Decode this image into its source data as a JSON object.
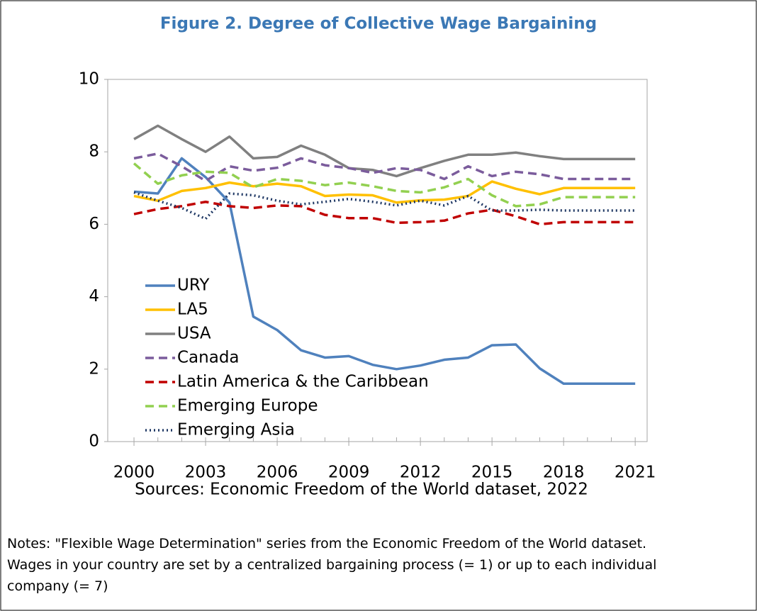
{
  "chart_data": {
    "type": "line",
    "title": "Figure 2. Degree of Collective Wage Bargaining",
    "source": "Sources: Economic Freedom of the World dataset, 2022",
    "notes": [
      "Notes:  \"Flexible Wage Determination\" series from the Economic Freedom of the World dataset.",
      "Wages in your country are set by a centralized bargaining process (= 1) or up to each individual",
      "company (= 7)"
    ],
    "x": [
      2000,
      2001,
      2002,
      2003,
      2004,
      2005,
      2006,
      2007,
      2008,
      2009,
      2010,
      2011,
      2012,
      2013,
      2014,
      2015,
      2016,
      2017,
      2018,
      2019,
      2020,
      2021
    ],
    "xlim": [
      1998.9,
      2021.5
    ],
    "xticks": [
      2000,
      2003,
      2006,
      2009,
      2012,
      2015,
      2018,
      2021
    ],
    "ylim": [
      0,
      10
    ],
    "yticks": [
      0,
      2,
      4,
      6,
      8,
      10
    ],
    "grid": false,
    "legend": "lower left",
    "series": [
      {
        "name": "URY",
        "color": "#4f81bd",
        "dash": "solid",
        "values": [
          6.9,
          6.85,
          7.82,
          7.3,
          6.6,
          3.45,
          3.08,
          2.52,
          2.32,
          2.36,
          2.12,
          2.0,
          2.1,
          2.26,
          2.32,
          2.66,
          2.68,
          2.02,
          1.6,
          1.6,
          1.6,
          1.6
        ]
      },
      {
        "name": "LA5",
        "color": "#ffc000",
        "dash": "solid",
        "values": [
          6.78,
          6.65,
          6.92,
          7.0,
          7.15,
          7.05,
          7.12,
          7.05,
          6.78,
          6.82,
          6.8,
          6.6,
          6.66,
          6.68,
          6.78,
          7.18,
          6.98,
          6.83,
          7.0,
          7.0,
          7.0,
          7.0
        ]
      },
      {
        "name": "USA",
        "color": "#808080",
        "dash": "solid",
        "values": [
          8.35,
          8.72,
          8.35,
          8.0,
          8.42,
          7.82,
          7.86,
          8.17,
          7.92,
          7.55,
          7.5,
          7.33,
          7.55,
          7.75,
          7.92,
          7.92,
          7.98,
          7.88,
          7.8,
          7.8,
          7.8,
          7.8
        ]
      },
      {
        "name": "Canada",
        "color": "#7b5c9c",
        "dash": "dashed",
        "values": [
          7.82,
          7.95,
          7.6,
          7.2,
          7.6,
          7.48,
          7.56,
          7.82,
          7.63,
          7.55,
          7.42,
          7.55,
          7.5,
          7.25,
          7.6,
          7.33,
          7.45,
          7.38,
          7.25,
          7.25,
          7.25,
          7.25
        ]
      },
      {
        "name": "Latin America & the Caribbean",
        "color": "#c00000",
        "dash": "dashed",
        "values": [
          6.28,
          6.42,
          6.5,
          6.62,
          6.5,
          6.45,
          6.52,
          6.5,
          6.26,
          6.17,
          6.17,
          6.04,
          6.06,
          6.1,
          6.3,
          6.4,
          6.22,
          6.0,
          6.06,
          6.06,
          6.06,
          6.06
        ]
      },
      {
        "name": "Emerging Europe",
        "color": "#92d050",
        "dash": "dashed",
        "values": [
          7.68,
          7.12,
          7.35,
          7.45,
          7.42,
          7.02,
          7.25,
          7.2,
          7.08,
          7.15,
          7.05,
          6.92,
          6.88,
          7.02,
          7.25,
          6.8,
          6.5,
          6.55,
          6.75,
          6.75,
          6.75,
          6.75
        ]
      },
      {
        "name": "Emerging Asia",
        "color": "#1f3864",
        "dash": "dotted",
        "values": [
          6.88,
          6.65,
          6.45,
          6.15,
          6.85,
          6.8,
          6.65,
          6.55,
          6.62,
          6.7,
          6.62,
          6.52,
          6.65,
          6.52,
          6.78,
          6.38,
          6.38,
          6.4,
          6.38,
          6.38,
          6.38,
          6.38
        ]
      }
    ]
  }
}
